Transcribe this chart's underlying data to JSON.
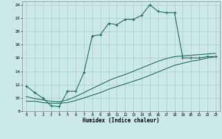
{
  "background_color": "#cce8e8",
  "grid_color": "#aacccc",
  "line_color": "#1a6b5a",
  "xlabel": "Humidex (Indice chaleur)",
  "xlim": [
    -0.5,
    23.5
  ],
  "ylim": [
    8,
    24.5
  ],
  "yticks": [
    8,
    10,
    12,
    14,
    16,
    18,
    20,
    22,
    24
  ],
  "xticks": [
    0,
    1,
    2,
    3,
    4,
    5,
    6,
    7,
    8,
    9,
    10,
    11,
    12,
    13,
    14,
    15,
    16,
    17,
    18,
    19,
    20,
    21,
    22,
    23
  ],
  "curve1_x": [
    0,
    1,
    2,
    3,
    4,
    5,
    6,
    7,
    8,
    9,
    10,
    11,
    12,
    13,
    14,
    15,
    16,
    17,
    18,
    19,
    20,
    21,
    22,
    23
  ],
  "curve1_y": [
    11.8,
    10.8,
    10.0,
    8.8,
    8.7,
    11.0,
    11.0,
    13.8,
    19.3,
    19.5,
    21.2,
    21.0,
    21.8,
    21.8,
    22.4,
    24.0,
    23.0,
    22.8,
    22.8,
    16.0,
    16.0,
    16.0,
    16.2,
    16.2
  ],
  "curve2_x": [
    0,
    1,
    2,
    3,
    4,
    5,
    6,
    7,
    8,
    9,
    10,
    11,
    12,
    13,
    14,
    15,
    16,
    17,
    18,
    19,
    20,
    21,
    22,
    23
  ],
  "curve2_y": [
    9.5,
    9.5,
    9.3,
    9.2,
    9.2,
    9.3,
    9.6,
    10.0,
    10.4,
    10.8,
    11.3,
    11.7,
    12.1,
    12.5,
    12.9,
    13.4,
    13.9,
    14.4,
    14.9,
    15.2,
    15.5,
    15.7,
    16.0,
    16.2
  ],
  "curve3_x": [
    0,
    1,
    2,
    3,
    4,
    5,
    6,
    7,
    8,
    9,
    10,
    11,
    12,
    13,
    14,
    15,
    16,
    17,
    18,
    19,
    20,
    21,
    22,
    23
  ],
  "curve3_y": [
    10.2,
    9.9,
    9.7,
    9.5,
    9.4,
    9.7,
    10.2,
    10.8,
    11.4,
    12.0,
    12.6,
    13.1,
    13.5,
    14.0,
    14.5,
    15.0,
    15.5,
    15.9,
    16.2,
    16.3,
    16.4,
    16.5,
    16.6,
    16.7
  ]
}
